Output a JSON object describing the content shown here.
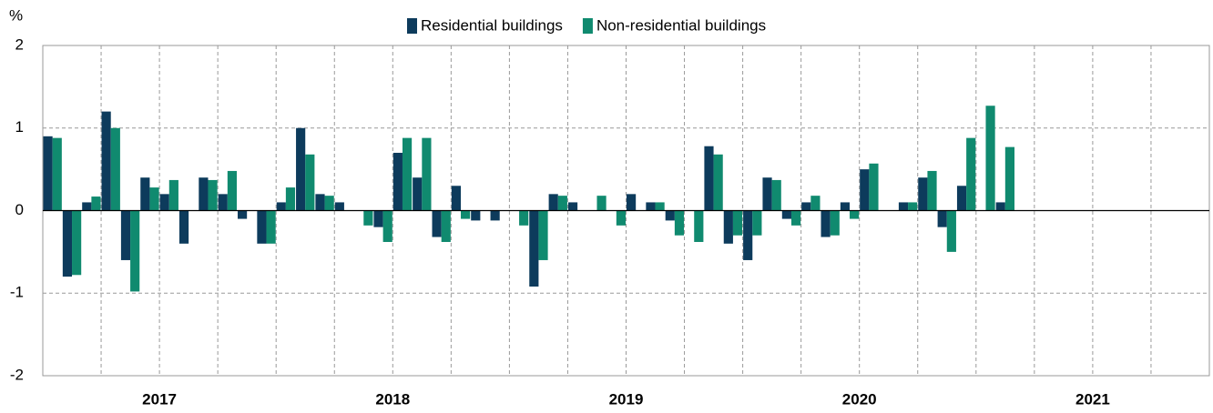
{
  "chart_data": {
    "type": "bar",
    "y_label": "%",
    "categories": [
      null,
      null,
      null,
      null,
      null,
      null,
      null,
      null,
      null,
      null,
      null,
      null,
      null,
      null,
      null,
      null,
      null,
      null,
      null,
      null,
      null,
      null,
      null,
      null,
      null,
      null,
      null,
      null,
      null,
      null,
      null,
      null,
      null,
      null,
      null,
      null,
      null,
      null,
      null,
      null,
      null,
      null,
      null,
      null,
      null,
      null,
      null,
      null,
      null,
      null,
      null,
      null,
      null,
      null,
      null,
      null,
      null,
      null,
      null,
      null
    ],
    "year_labels": [
      "2017",
      "2018",
      "2019",
      "2020",
      "2021"
    ],
    "series": [
      {
        "name": "Residential buildings",
        "color": "#0d3b5c",
        "values": [
          0.9,
          -0.8,
          0.1,
          1.2,
          -0.6,
          0.4,
          0.2,
          -0.4,
          0.4,
          0.2,
          -0.1,
          -0.4,
          0.1,
          1.0,
          0.2,
          0.1,
          0,
          -0.2,
          0.7,
          0.4,
          -0.32,
          0.3,
          -0.12,
          -0.12,
          0,
          -0.92,
          0.2,
          0.1,
          0,
          0,
          0.2,
          0.1,
          -0.12,
          0,
          0.78,
          -0.4,
          -0.6,
          0.4,
          -0.1,
          0.1,
          -0.32,
          0.1,
          0.5,
          0,
          0.1,
          0.4,
          -0.2,
          0.3,
          0,
          0.1,
          null,
          null,
          null,
          null,
          null,
          null,
          null,
          null,
          null,
          null
        ]
      },
      {
        "name": "Non-residential buildings",
        "color": "#108a6f",
        "values": [
          0.88,
          -0.78,
          0.17,
          1.0,
          -0.98,
          0.28,
          0.37,
          0,
          0.37,
          0.48,
          0,
          -0.4,
          0.28,
          0.68,
          0.18,
          0,
          -0.18,
          -0.38,
          0.88,
          0.88,
          -0.38,
          -0.1,
          0,
          0,
          -0.18,
          -0.6,
          0.18,
          0,
          0.18,
          -0.18,
          0,
          0.1,
          -0.3,
          -0.38,
          0.68,
          -0.3,
          -0.3,
          0.37,
          -0.18,
          0.18,
          -0.3,
          -0.1,
          0.57,
          0,
          0.1,
          0.48,
          -0.5,
          0.88,
          1.27,
          0.77,
          null,
          null,
          null,
          null,
          null,
          null,
          null,
          null,
          null,
          null
        ]
      }
    ],
    "ylim": [
      -2,
      2
    ],
    "yticks": [
      -2,
      -1,
      0,
      1,
      2
    ],
    "grid": true,
    "legend": "top"
  }
}
